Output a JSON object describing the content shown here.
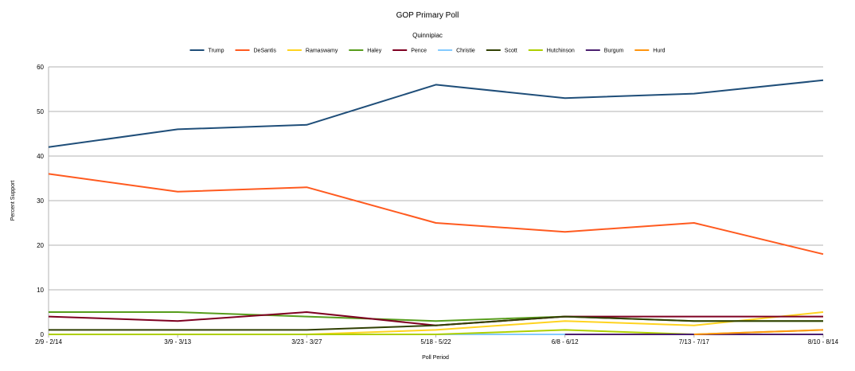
{
  "chart_data": {
    "type": "line",
    "title": "GOP Primary Poll",
    "subtitle": "Quinnipiac",
    "xlabel": "Poll Period",
    "ylabel": "Percent Support",
    "ylim": [
      0,
      60
    ],
    "yticks": [
      0,
      10,
      20,
      30,
      40,
      50,
      60
    ],
    "grid": "horizontal",
    "legend_position": "top",
    "categories": [
      "2/9 - 2/14",
      "3/9 - 3/13",
      "3/23 - 3/27",
      "5/18 - 5/22",
      "6/8 - 6/12",
      "7/13 - 7/17",
      "8/10 - 8/14"
    ],
    "series": [
      {
        "name": "Trump",
        "color": "#1f4e79",
        "values": [
          42,
          46,
          47,
          56,
          53,
          54,
          57
        ]
      },
      {
        "name": "DeSantis",
        "color": "#ff5a1f",
        "values": [
          36,
          32,
          33,
          25,
          23,
          25,
          18
        ]
      },
      {
        "name": "Ramaswamy",
        "color": "#ffd320",
        "values": [
          0,
          0,
          0,
          1,
          3,
          2,
          5
        ]
      },
      {
        "name": "Haley",
        "color": "#579d1c",
        "values": [
          5,
          5,
          4,
          3,
          4,
          3,
          3
        ]
      },
      {
        "name": "Pence",
        "color": "#7e0021",
        "values": [
          4,
          3,
          5,
          2,
          4,
          4,
          4
        ]
      },
      {
        "name": "Christie",
        "color": "#83caff",
        "values": [
          0,
          0,
          0,
          0,
          0,
          0,
          0
        ]
      },
      {
        "name": "Scott",
        "color": "#314004",
        "values": [
          1,
          1,
          1,
          2,
          4,
          3,
          3
        ]
      },
      {
        "name": "Hutchinson",
        "color": "#aecf00",
        "values": [
          0,
          0,
          0,
          0,
          1,
          0,
          1
        ]
      },
      {
        "name": "Burgum",
        "color": "#4b1f6f",
        "values": [
          null,
          null,
          null,
          null,
          0,
          0,
          0
        ]
      },
      {
        "name": "Hurd",
        "color": "#ff950e",
        "values": [
          null,
          null,
          null,
          null,
          null,
          0,
          1
        ]
      }
    ]
  }
}
